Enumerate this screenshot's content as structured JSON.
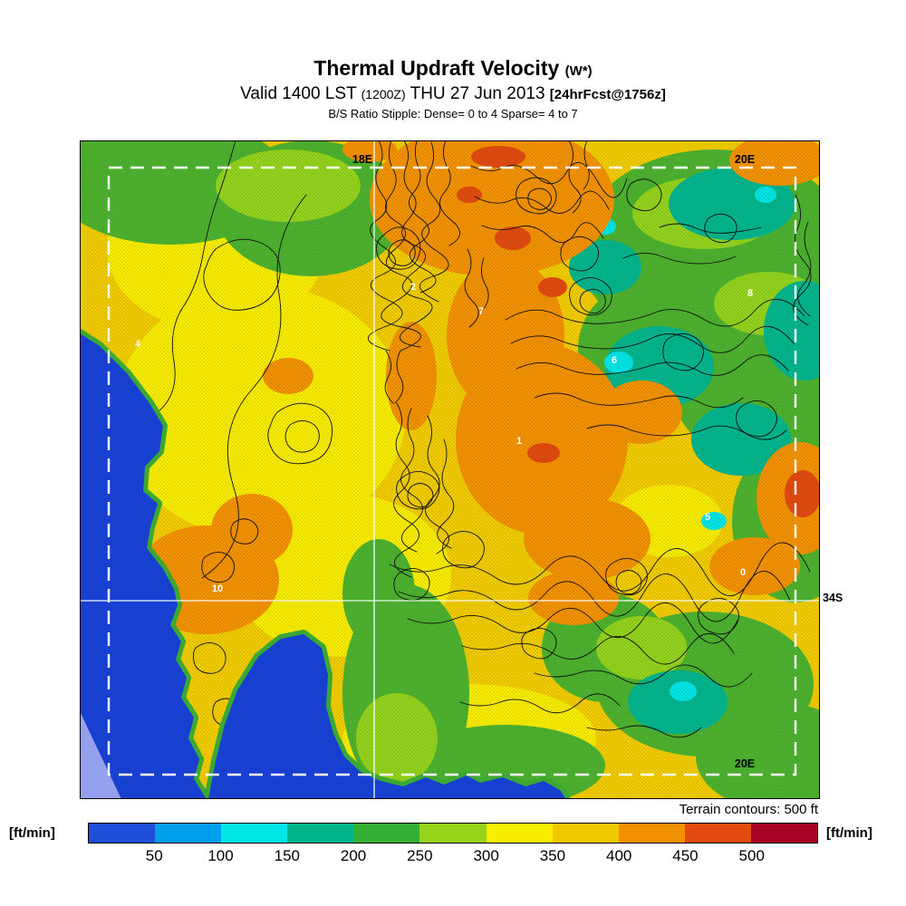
{
  "header": {
    "title": "Thermal Updraft Velocity",
    "title_unit": "(W*)",
    "valid_prefix": "Valid 1400 LST",
    "valid_zulu": "(1200Z)",
    "valid_date": "THU 27 Jun 2013",
    "valid_fcst": "[24hrFcst@1756z]",
    "stipple_note": "B/S Ratio Stipple:  Dense= 0 to 4  Sparse= 4 to 7"
  },
  "map": {
    "coord_labels": {
      "top_left": "18E",
      "top_right": "20E",
      "bottom_right": "20E",
      "right_lat": "34S"
    },
    "value_labels": [
      {
        "text": "2"
      },
      {
        "text": "7"
      },
      {
        "text": "6"
      },
      {
        "text": "8"
      },
      {
        "text": "1"
      },
      {
        "text": "5"
      },
      {
        "text": "0"
      },
      {
        "text": "10"
      },
      {
        "text": "4"
      }
    ],
    "terrain_note": "Terrain contours: 500 ft"
  },
  "colorbar": {
    "unit_left": "[ft/min]",
    "unit_right": "[ft/min]",
    "ticks": [
      "50",
      "100",
      "150",
      "200",
      "250",
      "300",
      "350",
      "400",
      "450",
      "500"
    ],
    "colors": [
      "#1f4fd8",
      "#009fee",
      "#00e6e6",
      "#00b48c",
      "#33b033",
      "#96d41c",
      "#f8ee00",
      "#f0c800",
      "#f19000",
      "#e24a10",
      "#a50226"
    ]
  },
  "palette": {
    "ocean": "#1740d0",
    "land_base": "#efcb00",
    "contour": "#101010",
    "graticule": "#ffffff"
  }
}
